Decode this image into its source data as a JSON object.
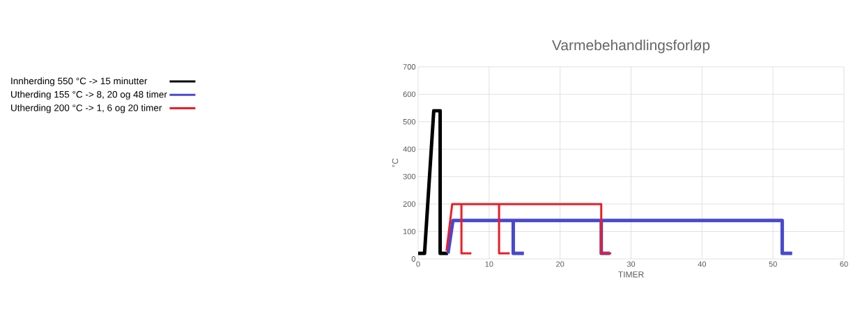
{
  "chart_data": {
    "type": "line",
    "title": "Varmebehandlingsforløp",
    "xlabel": "TIMER",
    "ylabel": "°C",
    "series": [
      {
        "name": "Innherding 550 °C -> 15 minutter",
        "color": "#000000",
        "x": [
          0,
          0.9,
          2.2,
          3.1,
          3.1,
          4.2
        ],
        "values": [
          20,
          20,
          540,
          540,
          20,
          20
        ]
      },
      {
        "name": "Utherding 155 °C -> 8, 20 og 48 timer",
        "color": "#4848d0",
        "x": [
          4.2,
          4.9,
          51.3,
          51.3,
          52.7,
          null,
          13.4,
          13.4,
          14.9,
          null,
          25.8,
          25.8,
          27
        ],
        "values": [
          20,
          140,
          140,
          20,
          20,
          null,
          140,
          20,
          20,
          null,
          140,
          20,
          20
        ]
      },
      {
        "name": "Utherding 200 °C -> 1, 6 og 20 timer",
        "color": "#ee1c25",
        "x": [
          4,
          4.8,
          25.8,
          25.8,
          27.2,
          null,
          6.1,
          6.1,
          7.5,
          null,
          11.4,
          11.4,
          12.9
        ],
        "values": [
          30,
          200,
          200,
          20,
          20,
          null,
          200,
          20,
          20,
          null,
          200,
          20,
          20
        ]
      }
    ],
    "xlim": [
      0,
      60
    ],
    "xticks": [
      0,
      10,
      20,
      30,
      40,
      50,
      60
    ],
    "ylim": [
      0,
      700
    ],
    "yticks": [
      0,
      100,
      200,
      300,
      400,
      500,
      600,
      700
    ],
    "grid": true,
    "legend": "left",
    "marker": "none",
    "line_style": "solid"
  }
}
